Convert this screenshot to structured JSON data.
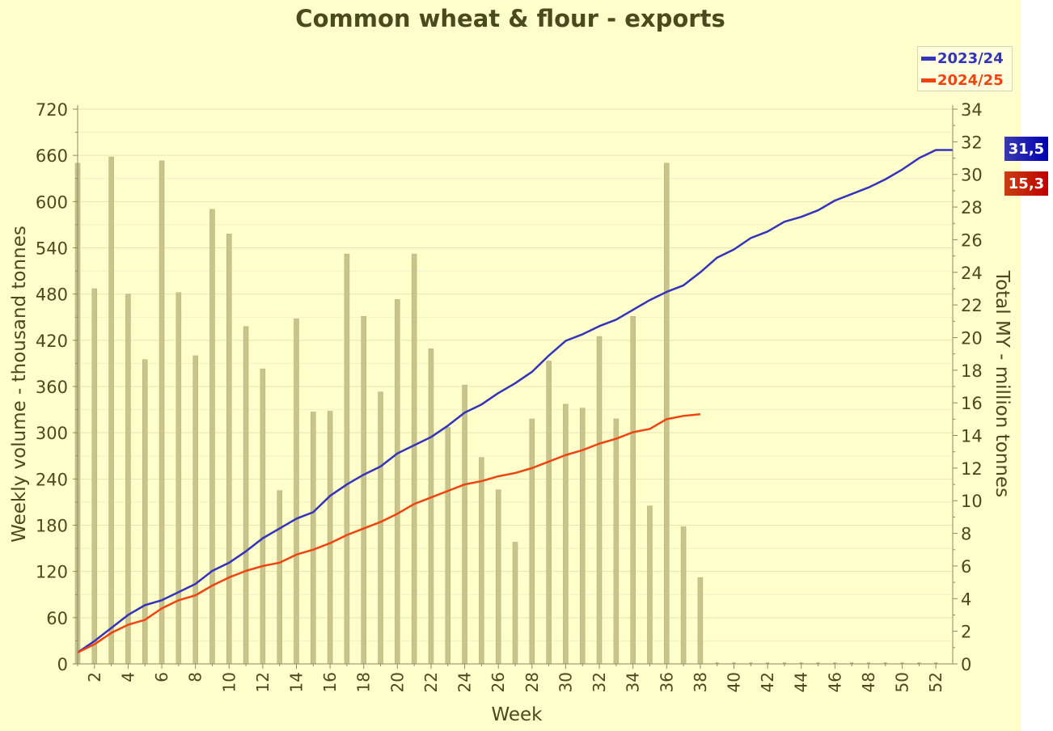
{
  "chart_data": {
    "type": "bar+line",
    "title": "Common wheat & flour - exports",
    "xlabel": "Week",
    "ylabel": "Weekly volume - thousand tonnes",
    "y2label": "Total MY - million tonnes",
    "ylim": [
      0,
      720
    ],
    "y2lim": [
      0,
      34
    ],
    "xlim": [
      1,
      53
    ],
    "y_ticks": [
      "0",
      "60",
      "120",
      "180",
      "240",
      "300",
      "360",
      "420",
      "480",
      "540",
      "600",
      "660",
      "720"
    ],
    "y2_ticks": [
      "0",
      "2",
      "4",
      "6",
      "8",
      "10",
      "12",
      "14",
      "16",
      "18",
      "20",
      "22",
      "24",
      "26",
      "28",
      "30",
      "32",
      "34"
    ],
    "x_ticks": [
      "2",
      "4",
      "6",
      "8",
      "10",
      "12",
      "14",
      "16",
      "18",
      "20",
      "22",
      "24",
      "26",
      "28",
      "30",
      "32",
      "34",
      "36",
      "38",
      "40",
      "42",
      "44",
      "46",
      "48",
      "50",
      "52"
    ],
    "grid": true,
    "legend_position": "top-right",
    "bars": {
      "x": [
        1,
        2,
        3,
        4,
        5,
        6,
        7,
        8,
        9,
        10,
        11,
        12,
        13,
        14,
        15,
        16,
        17,
        18,
        19,
        20,
        21,
        22,
        23,
        24,
        25,
        26,
        27,
        28,
        29,
        30,
        31,
        32,
        33,
        34,
        35,
        36,
        37,
        38,
        39,
        40,
        41,
        42,
        43,
        44,
        45,
        46,
        47,
        48,
        49,
        50,
        51,
        52
      ],
      "values": [
        650,
        487,
        658,
        480,
        395,
        653,
        482,
        400,
        590,
        558,
        438,
        383,
        225,
        448,
        327,
        328,
        532,
        451,
        353,
        473,
        532,
        409,
        307,
        362,
        268,
        226,
        158,
        318,
        393,
        337,
        332,
        425,
        318,
        451,
        205,
        650,
        178,
        112,
        0,
        0,
        0,
        0,
        0,
        0,
        0,
        0,
        0,
        0,
        0,
        0,
        0,
        0
      ],
      "color": "#c8c48a"
    },
    "series": [
      {
        "name": "2023/24",
        "color": "#3333bb",
        "x": [
          1,
          2,
          3,
          4,
          5,
          6,
          7,
          8,
          9,
          10,
          11,
          12,
          13,
          14,
          15,
          16,
          17,
          18,
          19,
          20,
          21,
          22,
          23,
          24,
          25,
          26,
          27,
          28,
          29,
          30,
          31,
          32,
          33,
          34,
          35,
          36,
          37,
          38,
          39,
          40,
          41,
          42,
          43,
          44,
          45,
          46,
          47,
          48,
          49,
          50,
          51,
          52,
          53
        ],
        "values": [
          0.7,
          1.4,
          2.2,
          3.0,
          3.6,
          3.9,
          4.4,
          4.9,
          5.7,
          6.2,
          6.9,
          7.7,
          8.3,
          8.9,
          9.3,
          10.3,
          11.0,
          11.6,
          12.1,
          12.9,
          13.4,
          13.9,
          14.6,
          15.4,
          15.9,
          16.6,
          17.2,
          17.9,
          18.9,
          19.8,
          20.2,
          20.7,
          21.1,
          21.7,
          22.3,
          22.8,
          23.2,
          24.0,
          24.9,
          25.4,
          26.1,
          26.5,
          27.1,
          27.4,
          27.8,
          28.4,
          28.8,
          29.2,
          29.7,
          30.3,
          31.0,
          31.5,
          31.5
        ]
      },
      {
        "name": "2024/25",
        "color": "#ee4411",
        "x": [
          1,
          2,
          3,
          4,
          5,
          6,
          7,
          8,
          9,
          10,
          11,
          12,
          13,
          14,
          15,
          16,
          17,
          18,
          19,
          20,
          21,
          22,
          23,
          24,
          25,
          26,
          27,
          28,
          29,
          30,
          31,
          32,
          33,
          34,
          35,
          36,
          37,
          38
        ],
        "values": [
          0.7,
          1.2,
          1.9,
          2.4,
          2.7,
          3.4,
          3.9,
          4.2,
          4.8,
          5.3,
          5.7,
          6.0,
          6.2,
          6.7,
          7.0,
          7.4,
          7.9,
          8.3,
          8.7,
          9.2,
          9.8,
          10.2,
          10.6,
          11.0,
          11.2,
          11.5,
          11.7,
          12.0,
          12.4,
          12.8,
          13.1,
          13.5,
          13.8,
          14.2,
          14.4,
          15.0,
          15.2,
          15.3
        ]
      }
    ],
    "end_labels": [
      "31,5",
      "15,3"
    ]
  }
}
